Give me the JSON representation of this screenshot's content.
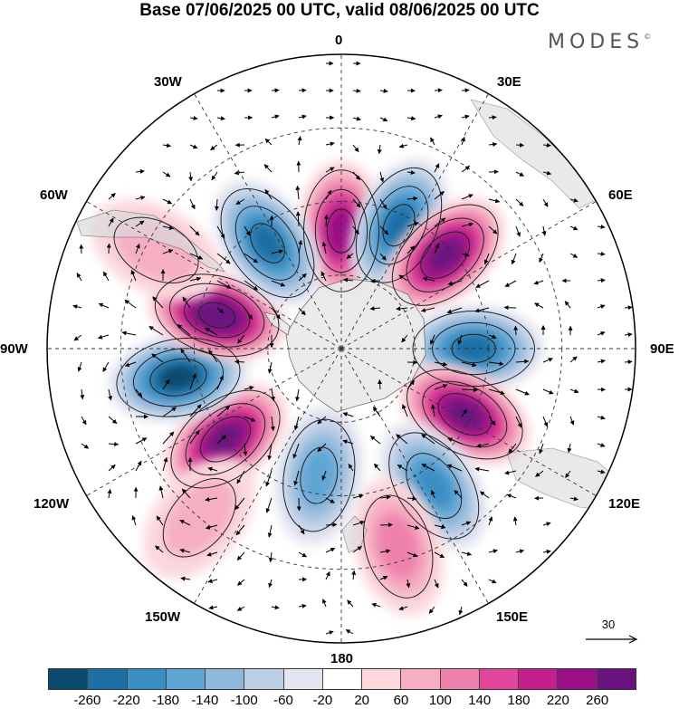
{
  "title": "Base 07/06/2025 00 UTC, valid 08/06/2025 00 UTC",
  "brand": "MODES",
  "brand_mark": "©",
  "lon_labels": {
    "n": "0",
    "e30": "30E",
    "e60": "60E",
    "e90": "90E",
    "e120": "120E",
    "e150": "150E",
    "s": "180",
    "w150": "150W",
    "w120": "120W",
    "w90": "90W",
    "w60": "60W",
    "w30": "30W"
  },
  "reference_vector": "30",
  "colorbar": {
    "ticks": [
      "-260",
      "-220",
      "-180",
      "-140",
      "-100",
      "-60",
      "-20",
      "20",
      "60",
      "100",
      "140",
      "180",
      "220",
      "260"
    ],
    "colors": [
      "#0c4a6e",
      "#1d6ea4",
      "#3a8fc4",
      "#5fa6d4",
      "#8fb9dc",
      "#bccde6",
      "#e3e5f0",
      "#ffffff",
      "#fbd8dd",
      "#f6afc2",
      "#ee82ad",
      "#e0479a",
      "#c51d8c",
      "#9a0f85",
      "#6a1280"
    ]
  },
  "anomaly_cells": [
    {
      "lon": 0,
      "lat": -58,
      "value": 220
    },
    {
      "lon": 25,
      "lat": -53,
      "value": -200
    },
    {
      "lon": 48,
      "lat": -52,
      "value": 230
    },
    {
      "lon": 90,
      "lat": -54,
      "value": -190
    },
    {
      "lon": 118,
      "lat": -52,
      "value": 260
    },
    {
      "lon": 146,
      "lat": -45,
      "value": -150
    },
    {
      "lon": 164,
      "lat": -34,
      "value": 80
    },
    {
      "lon": -170,
      "lat": -55,
      "value": -110
    },
    {
      "lon": -128,
      "lat": -50,
      "value": 250
    },
    {
      "lon": -100,
      "lat": -45,
      "value": -230
    },
    {
      "lon": -75,
      "lat": -55,
      "value": 270
    },
    {
      "lon": -35,
      "lat": -55,
      "value": -190
    },
    {
      "lon": -62,
      "lat": -33,
      "value": 60
    },
    {
      "lon": -140,
      "lat": -30,
      "value": 60
    }
  ]
}
